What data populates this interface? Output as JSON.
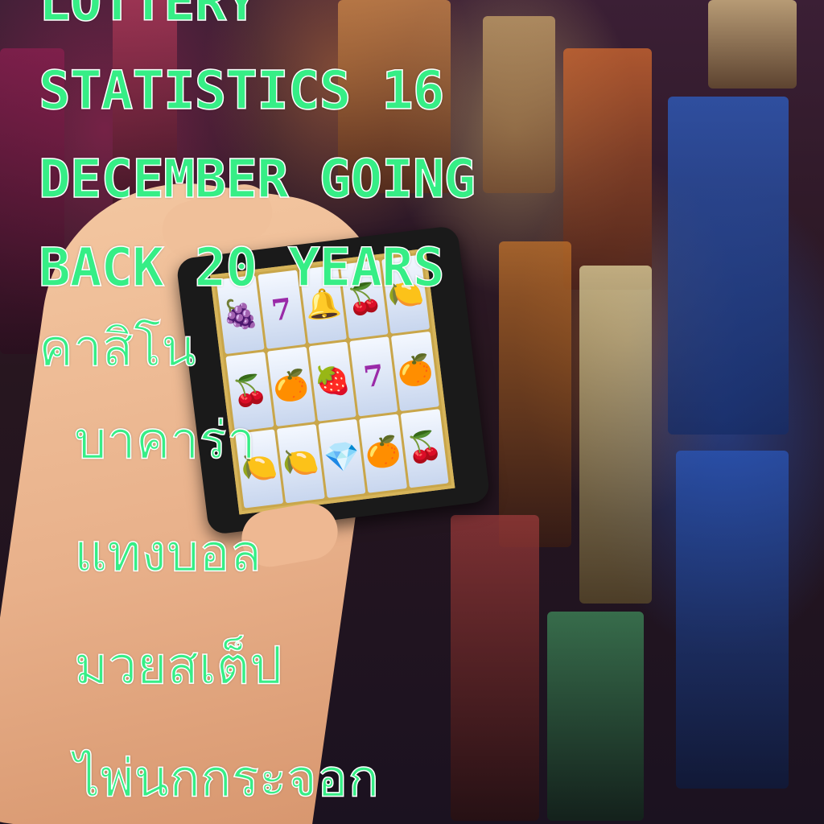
{
  "headline": {
    "line1": "LOTTERY",
    "line2": "STATISTICS 16",
    "line3": "DECEMBER GOING",
    "line4": "BACK 20 YEARS"
  },
  "keywords": [
    "คาสิโน",
    "บาคาร่า",
    "แทงบอล",
    "มวยสเต็ป",
    "ไพ่นกกระจอก"
  ],
  "colors": {
    "text_fill": "#36ee86",
    "text_outline": "#ffffff"
  },
  "slot_reels": [
    "🍇",
    "7",
    "🔔",
    "🍒",
    "🍋",
    "🍒",
    "🍊",
    "🍓",
    "7",
    "🍊",
    "🍋",
    "🍋",
    "💎",
    "🍊",
    "🍒"
  ]
}
